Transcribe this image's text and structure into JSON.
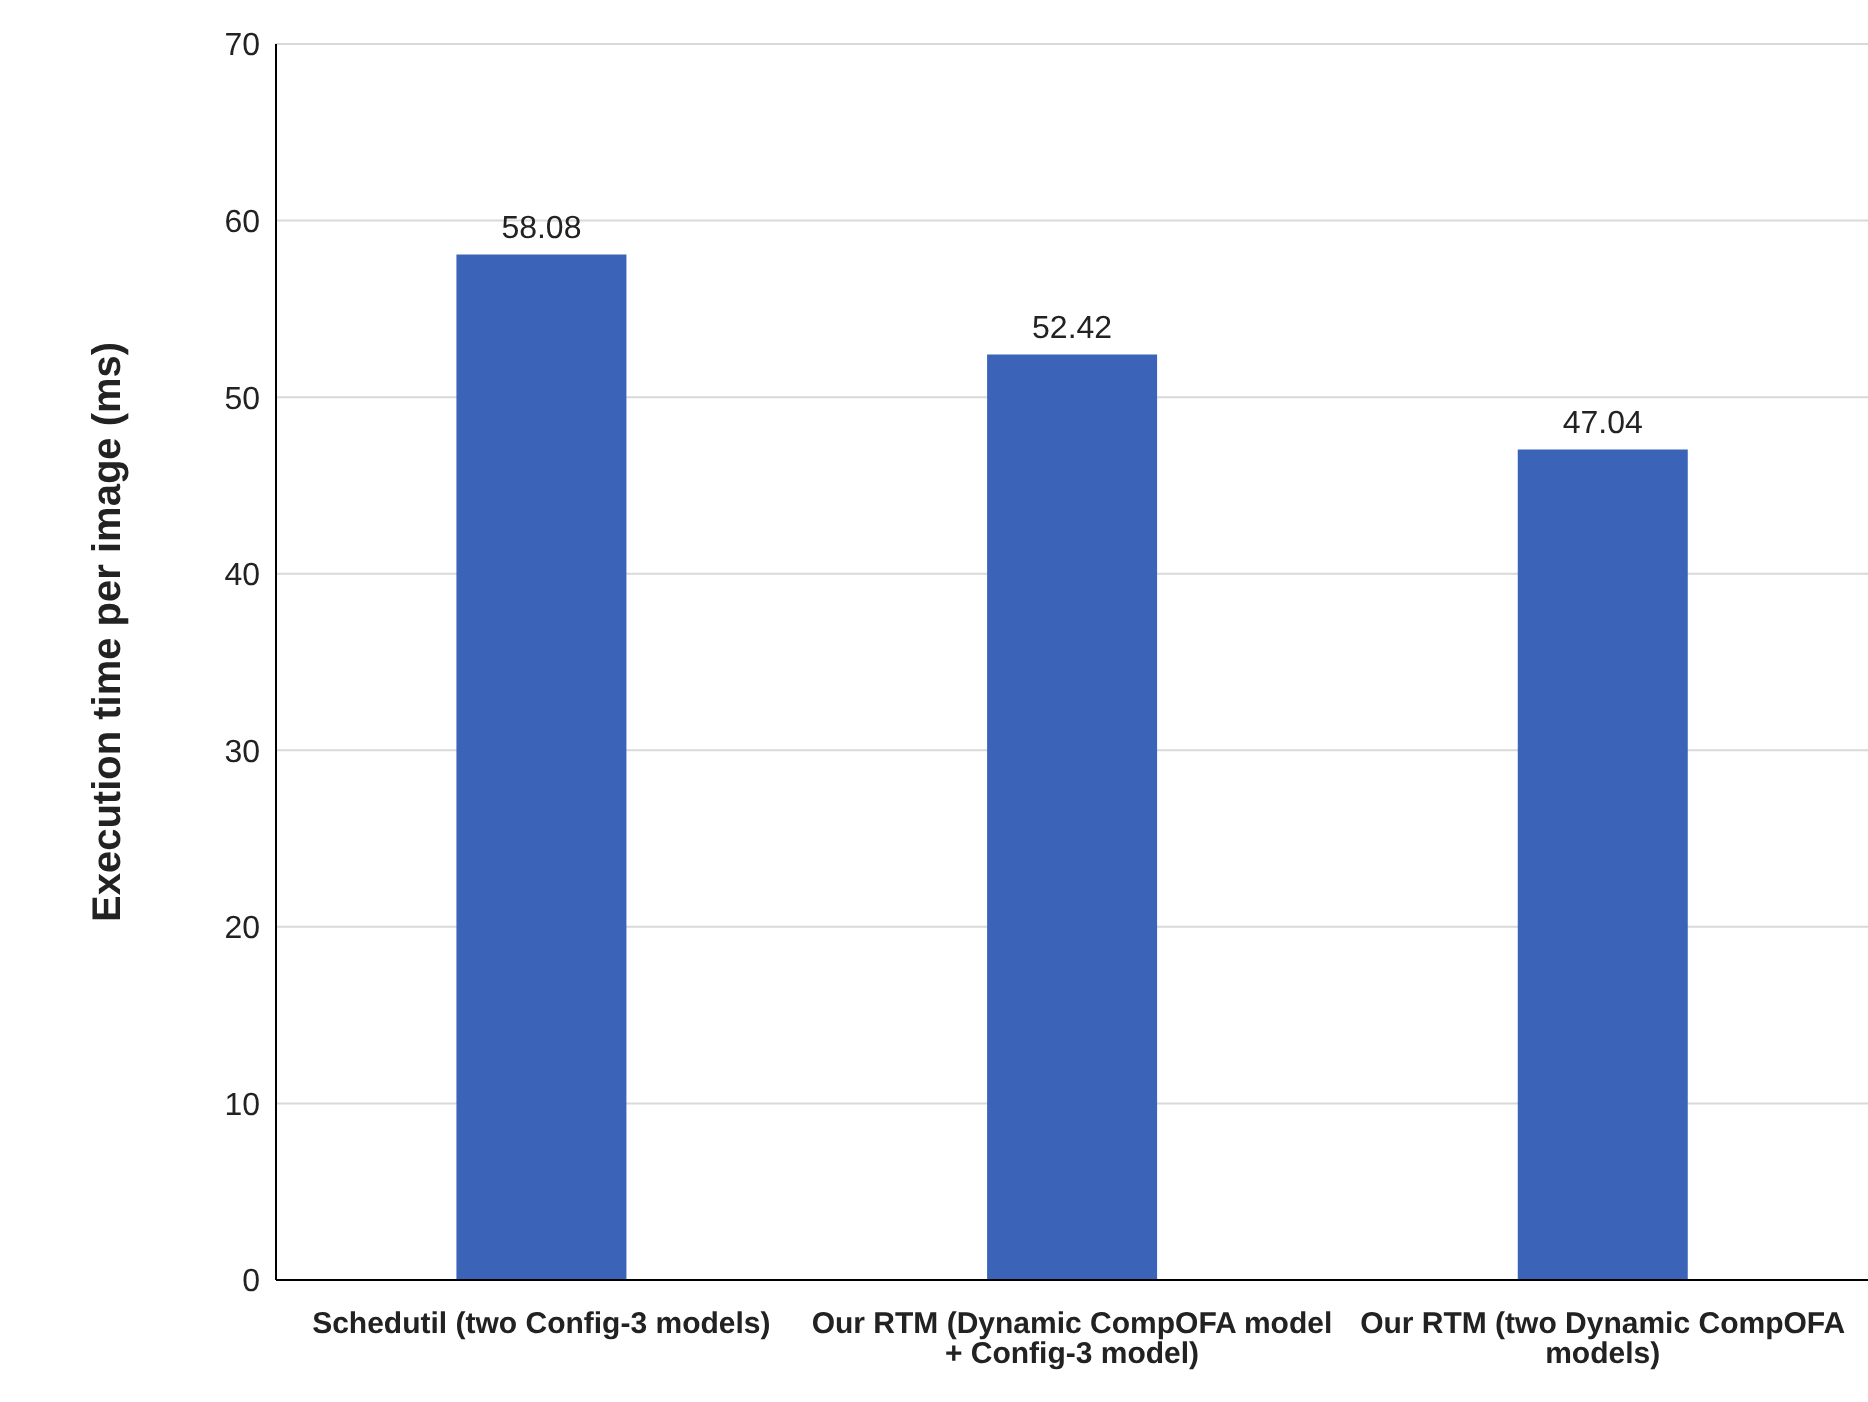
{
  "chart_data": {
    "type": "bar",
    "ylabel": "Execution time per image (ms)",
    "categories": [
      "Schedutil (two Config-3 models)",
      "Our RTM (Dynamic CompOFA model + Config-3 model)",
      "Our RTM (two Dynamic CompOFA models)"
    ],
    "values": [
      58.08,
      52.42,
      47.04
    ],
    "color": "#3b64b9",
    "ylim": [
      0,
      70
    ],
    "yticks": [
      0,
      10,
      20,
      30,
      40,
      50,
      60,
      70
    ],
    "grid": "y",
    "data_labels": true
  }
}
